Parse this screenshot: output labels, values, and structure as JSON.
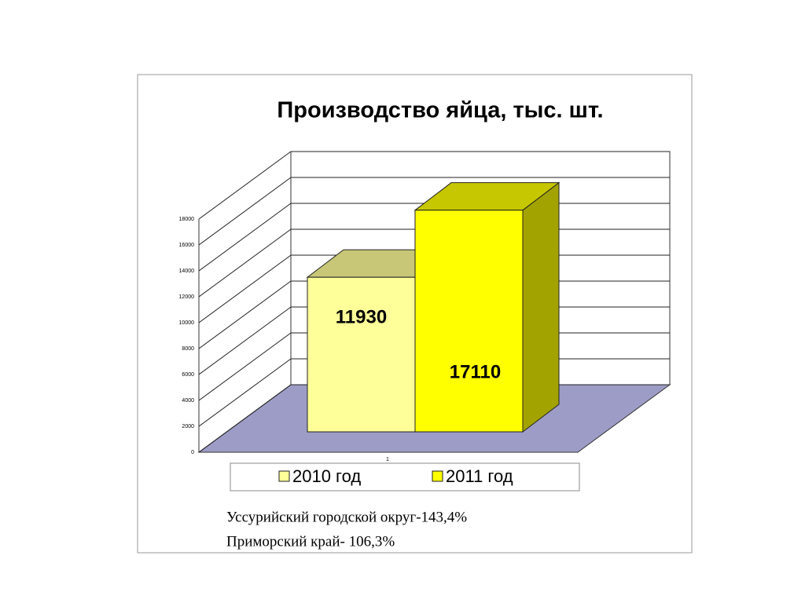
{
  "chart_data": {
    "type": "bar3d",
    "title": "Производство яйца, тыс. шт.",
    "categories": [
      "1"
    ],
    "series": [
      {
        "name": "2010 год",
        "color": "#ffff99",
        "values": [
          11930
        ]
      },
      {
        "name": "2011 год",
        "color": "#ffff00",
        "values": [
          17110
        ]
      }
    ],
    "ylim": [
      0,
      18000
    ],
    "yticks": [
      0,
      2000,
      4000,
      6000,
      8000,
      10000,
      12000,
      14000,
      16000,
      18000
    ],
    "grid": true,
    "floor_color": "#9c9cc6",
    "annotations": [
      "Уссурийский городской округ-143,4%",
      "Приморский край- 106,3%"
    ]
  }
}
